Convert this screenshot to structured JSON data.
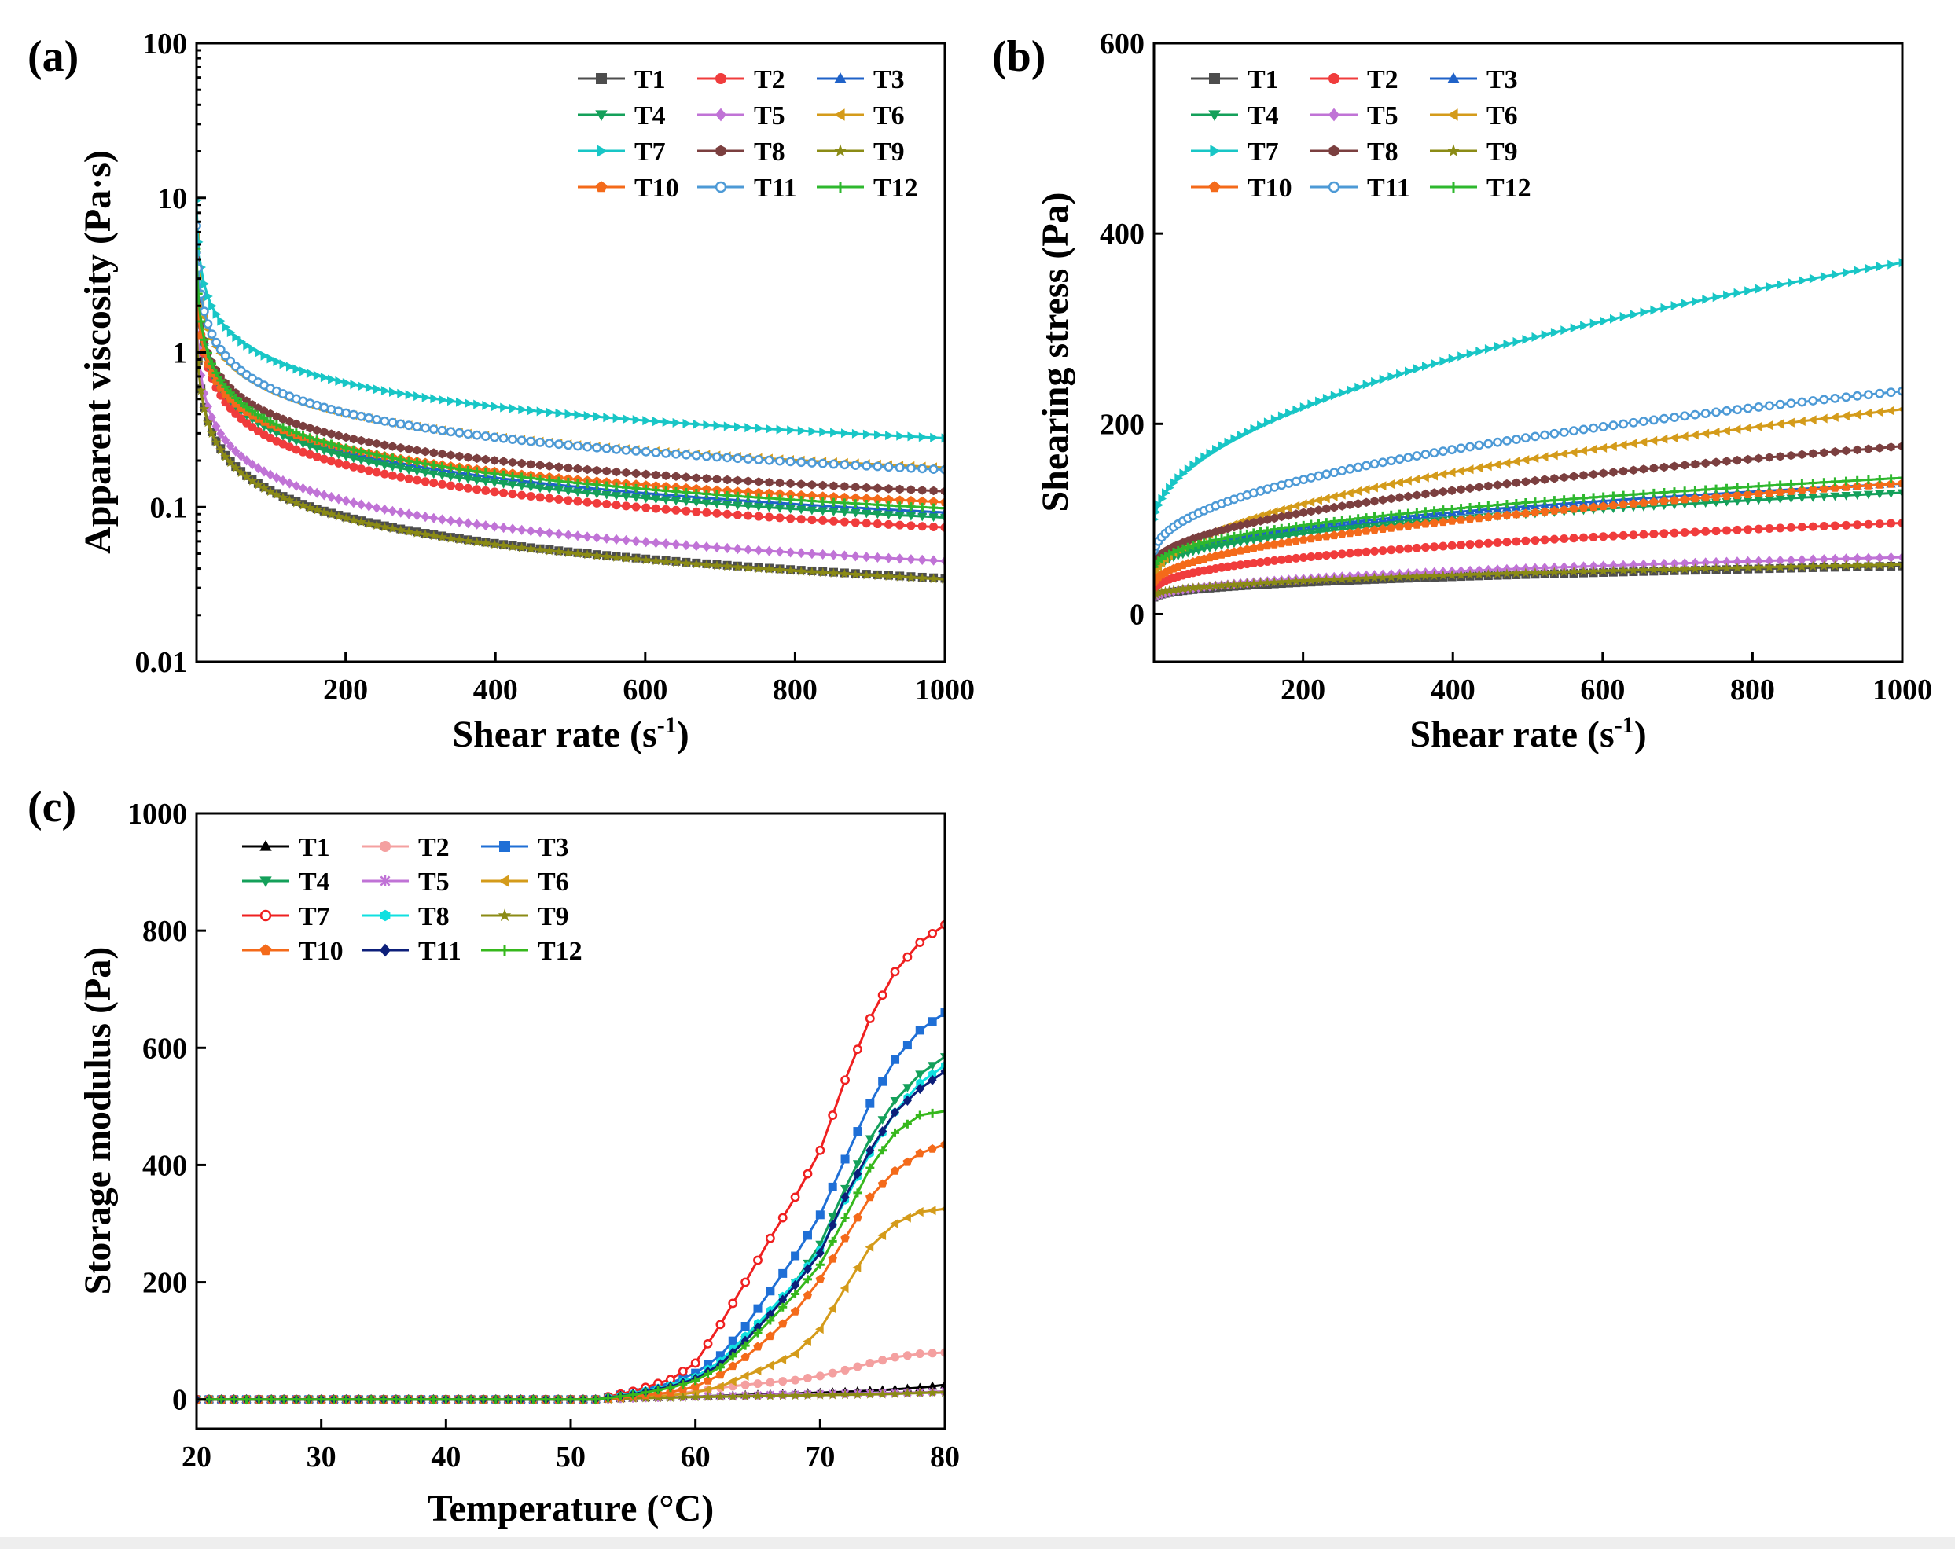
{
  "chart_data": [
    {
      "panel": "(a)",
      "type": "line",
      "xlabel": "Shear rate (s",
      "xlabel_sup": "-1",
      "xlabel_tail": ")",
      "ylabel": "Apparent viscosity (Pa·s)",
      "yscale": "log",
      "xlim": [
        1,
        1000
      ],
      "ylim": [
        0.01,
        100
      ],
      "xticks": [
        200,
        400,
        600,
        800,
        1000
      ],
      "xtick_labels": [
        "200",
        "400",
        "600",
        "800",
        "1000"
      ],
      "yticks": [
        0.01,
        0.1,
        1,
        10,
        100
      ],
      "ytick_labels": [
        "0.01",
        "0.1",
        "1",
        "10",
        "100"
      ],
      "legend_position": "top-right",
      "marker_count": 90,
      "series": [
        {
          "name": "T1",
          "color": "#4d4d4d",
          "marker": "square",
          "law": "power",
          "a": 1.75,
          "b": -0.568
        },
        {
          "name": "T2",
          "color": "#f03c3c",
          "marker": "circle",
          "law": "power",
          "a": 4.0,
          "b": -0.578
        },
        {
          "name": "T3",
          "color": "#1f62c8",
          "marker": "triangle-up",
          "law": "power",
          "a": 4.6,
          "b": -0.566
        },
        {
          "name": "T4",
          "color": "#14a05a",
          "marker": "triangle-down",
          "law": "power",
          "a": 4.3,
          "b": -0.567
        },
        {
          "name": "T5",
          "color": "#c073d6",
          "marker": "diamond",
          "law": "power",
          "a": 2.1,
          "b": -0.557
        },
        {
          "name": "T6",
          "color": "#d49b1a",
          "marker": "triangle-left",
          "law": "power",
          "a": 5.7,
          "b": -0.5
        },
        {
          "name": "T7",
          "color": "#18c6c6",
          "marker": "triangle-right",
          "law": "power",
          "a": 9.6,
          "b": -0.512
        },
        {
          "name": "T8",
          "color": "#7b3f3f",
          "marker": "hexagon",
          "law": "power",
          "a": 4.0,
          "b": -0.5
        },
        {
          "name": "T9",
          "color": "#8b8b15",
          "marker": "star",
          "law": "power",
          "a": 1.7,
          "b": -0.566
        },
        {
          "name": "T10",
          "color": "#f46a1a",
          "marker": "pentagon",
          "law": "power",
          "a": 3.4,
          "b": -0.5
        },
        {
          "name": "T11",
          "color": "#4d9ad6",
          "marker": "circle-open",
          "law": "power",
          "a": 6.6,
          "b": -0.526
        },
        {
          "name": "T12",
          "color": "#2eb82e",
          "marker": "plus",
          "law": "power",
          "a": 4.7,
          "b": -0.56
        }
      ]
    },
    {
      "panel": "(b)",
      "type": "line",
      "xlabel": "Shear rate (s",
      "xlabel_sup": "-1",
      "xlabel_tail": ")",
      "ylabel": "Shearing stress (Pa)",
      "yscale": "linear",
      "xlim": [
        1,
        1000
      ],
      "ylim": [
        -50,
        600
      ],
      "xticks": [
        200,
        400,
        600,
        800,
        1000
      ],
      "xtick_labels": [
        "200",
        "400",
        "600",
        "800",
        "1000"
      ],
      "yticks": [
        0,
        200,
        400,
        600
      ],
      "ytick_labels": [
        "0",
        "200",
        "400",
        "600"
      ],
      "legend_position": "top-left",
      "marker_count": 90,
      "series": [
        {
          "name": "T1",
          "color": "#4d4d4d",
          "marker": "square",
          "law": "hb",
          "t0": 16,
          "k": 1.75,
          "n": 0.432
        },
        {
          "name": "T2",
          "color": "#f03c3c",
          "marker": "circle",
          "law": "hb",
          "t0": 22,
          "k": 4.0,
          "n": 0.422
        },
        {
          "name": "T3",
          "color": "#1f62c8",
          "marker": "triangle-up",
          "law": "hb",
          "t0": 45,
          "k": 4.6,
          "n": 0.434
        },
        {
          "name": "T4",
          "color": "#14a05a",
          "marker": "triangle-down",
          "law": "hb",
          "t0": 42,
          "k": 4.3,
          "n": 0.433
        },
        {
          "name": "T5",
          "color": "#c073d6",
          "marker": "diamond",
          "law": "hb",
          "t0": 15,
          "k": 2.1,
          "n": 0.443
        },
        {
          "name": "T6",
          "color": "#d49b1a",
          "marker": "triangle-left",
          "law": "hb",
          "t0": 35,
          "k": 5.7,
          "n": 0.5
        },
        {
          "name": "T7",
          "color": "#18c6c6",
          "marker": "triangle-right",
          "law": "hb",
          "t0": 90,
          "k": 9.6,
          "n": 0.488
        },
        {
          "name": "T8",
          "color": "#7b3f3f",
          "marker": "hexagon",
          "law": "hb",
          "t0": 50,
          "k": 4.0,
          "n": 0.5
        },
        {
          "name": "T9",
          "color": "#8b8b15",
          "marker": "star",
          "law": "hb",
          "t0": 18,
          "k": 1.7,
          "n": 0.434
        },
        {
          "name": "T10",
          "color": "#f46a1a",
          "marker": "pentagon",
          "law": "hb",
          "t0": 30,
          "k": 3.4,
          "n": 0.5
        },
        {
          "name": "T11",
          "color": "#4d9ad6",
          "marker": "circle-open",
          "law": "hb",
          "t0": 60,
          "k": 6.6,
          "n": 0.474
        },
        {
          "name": "T12",
          "color": "#2eb82e",
          "marker": "plus",
          "law": "hb",
          "t0": 45,
          "k": 4.7,
          "n": 0.44
        }
      ]
    },
    {
      "panel": "(c)",
      "type": "line",
      "xlabel": "Temperature (°C)",
      "ylabel": "Storage modulus (Pa)",
      "yscale": "linear",
      "xlim": [
        20,
        80
      ],
      "ylim": [
        -50,
        1000
      ],
      "xticks": [
        20,
        30,
        40,
        50,
        60,
        70,
        80
      ],
      "xtick_labels": [
        "20",
        "30",
        "40",
        "50",
        "60",
        "70",
        "80"
      ],
      "yticks": [
        0,
        200,
        400,
        600,
        800,
        1000
      ],
      "ytick_labels": [
        "0",
        "200",
        "400",
        "600",
        "800",
        "1000"
      ],
      "legend_position": "top-left",
      "series": [
        {
          "name": "T1",
          "color": "#000000",
          "marker": "triangle-up",
          "x": [
            20,
            52,
            55,
            58,
            60,
            63,
            66,
            69,
            72,
            75,
            78,
            80
          ],
          "y": [
            0,
            0,
            2,
            4,
            5,
            7,
            9,
            11,
            13,
            16,
            20,
            25
          ]
        },
        {
          "name": "T2",
          "color": "#f4a0a0",
          "marker": "circle",
          "x": [
            20,
            52,
            55,
            58,
            60,
            62,
            64,
            66,
            68,
            70,
            72,
            74,
            76,
            78,
            80
          ],
          "y": [
            0,
            0,
            3,
            8,
            14,
            20,
            25,
            29,
            33,
            40,
            50,
            62,
            72,
            78,
            80
          ]
        },
        {
          "name": "T3",
          "color": "#1f6fd6",
          "marker": "square",
          "x": [
            20,
            52,
            55,
            58,
            60,
            62,
            64,
            66,
            68,
            70,
            72,
            74,
            76,
            78,
            80
          ],
          "y": [
            0,
            0,
            12,
            28,
            45,
            75,
            125,
            185,
            245,
            315,
            410,
            505,
            580,
            630,
            660
          ]
        },
        {
          "name": "T4",
          "color": "#14a05a",
          "marker": "triangle-down",
          "x": [
            20,
            52,
            55,
            58,
            60,
            62,
            64,
            66,
            68,
            70,
            72,
            74,
            76,
            78,
            80
          ],
          "y": [
            0,
            0,
            10,
            24,
            38,
            62,
            102,
            148,
            200,
            265,
            360,
            445,
            510,
            555,
            585
          ]
        },
        {
          "name": "T5",
          "color": "#c073d6",
          "marker": "x",
          "x": [
            20,
            52,
            55,
            58,
            60,
            63,
            66,
            69,
            72,
            75,
            78,
            80
          ],
          "y": [
            0,
            0,
            2,
            4,
            5,
            6,
            8,
            9,
            10,
            11,
            12,
            14
          ]
        },
        {
          "name": "T6",
          "color": "#d49b1a",
          "marker": "triangle-left",
          "x": [
            20,
            52,
            55,
            58,
            60,
            62,
            64,
            66,
            68,
            70,
            72,
            74,
            76,
            78,
            80
          ],
          "y": [
            0,
            0,
            3,
            7,
            12,
            22,
            40,
            58,
            78,
            120,
            190,
            260,
            300,
            320,
            325
          ]
        },
        {
          "name": "T7",
          "color": "#ef2020",
          "marker": "circle-open",
          "x": [
            20,
            52,
            55,
            58,
            60,
            62,
            64,
            66,
            68,
            70,
            72,
            74,
            76,
            78,
            80
          ],
          "y": [
            0,
            0,
            14,
            34,
            62,
            128,
            200,
            275,
            345,
            425,
            545,
            650,
            730,
            780,
            810
          ]
        },
        {
          "name": "T8",
          "color": "#10e0e0",
          "marker": "hexagon",
          "x": [
            20,
            52,
            55,
            58,
            60,
            62,
            64,
            66,
            68,
            70,
            72,
            74,
            76,
            78,
            80
          ],
          "y": [
            0,
            0,
            10,
            24,
            38,
            65,
            108,
            152,
            200,
            255,
            340,
            420,
            490,
            540,
            570
          ]
        },
        {
          "name": "T9",
          "color": "#8b8b15",
          "marker": "star",
          "x": [
            20,
            52,
            55,
            58,
            60,
            63,
            66,
            69,
            72,
            75,
            78,
            80
          ],
          "y": [
            0,
            0,
            2,
            3,
            4,
            5,
            6,
            7,
            8,
            9,
            11,
            12
          ]
        },
        {
          "name": "T10",
          "color": "#f46a1a",
          "marker": "pentagon",
          "x": [
            20,
            52,
            55,
            58,
            60,
            62,
            64,
            66,
            68,
            70,
            72,
            74,
            76,
            78,
            80
          ],
          "y": [
            0,
            0,
            5,
            12,
            22,
            42,
            72,
            108,
            150,
            205,
            275,
            345,
            390,
            420,
            435
          ]
        },
        {
          "name": "T11",
          "color": "#0d1f7a",
          "marker": "diamond",
          "x": [
            20,
            52,
            55,
            58,
            60,
            62,
            64,
            66,
            68,
            70,
            72,
            74,
            76,
            78,
            80
          ],
          "y": [
            0,
            0,
            9,
            22,
            35,
            60,
            100,
            145,
            195,
            250,
            345,
            425,
            490,
            530,
            560
          ]
        },
        {
          "name": "T12",
          "color": "#36b81c",
          "marker": "plus",
          "x": [
            20,
            52,
            55,
            58,
            60,
            62,
            64,
            66,
            68,
            70,
            72,
            74,
            76,
            78,
            80
          ],
          "y": [
            0,
            0,
            8,
            20,
            32,
            55,
            92,
            135,
            180,
            230,
            310,
            395,
            455,
            485,
            492
          ]
        }
      ]
    }
  ]
}
